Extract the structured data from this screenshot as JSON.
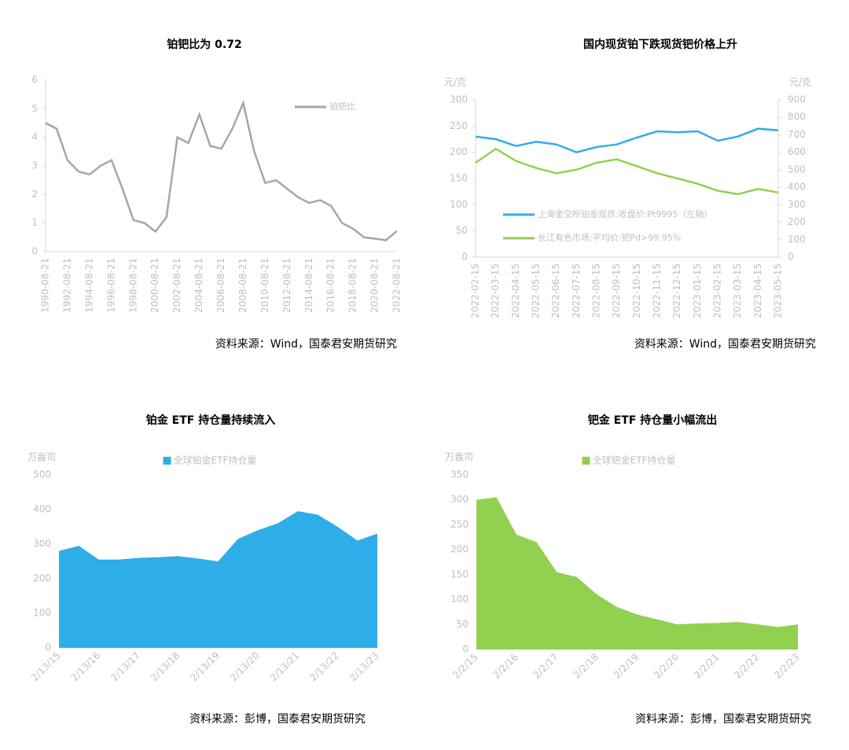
{
  "chart_data": [
    {
      "type": "line",
      "title": "铂钯比为 0.72",
      "source": "资料来源：Wind，国泰君安期货研究",
      "categories": [
        "1990-08-21",
        null,
        "1992-08-21",
        null,
        "1994-08-21",
        null,
        "1996-08-21",
        null,
        "1998-08-21",
        null,
        "2000-08-21",
        null,
        "2002-08-21",
        null,
        "2004-08-21",
        null,
        "2006-08-21",
        null,
        "2008-08-21",
        null,
        "2010-08-21",
        null,
        "2012-08-21",
        null,
        "2014-08-21",
        null,
        "2016-08-21",
        null,
        "2018-08-21",
        null,
        "2020-08-21",
        null,
        "2022-08-21"
      ],
      "series": [
        {
          "name": "铂钯比",
          "color": "#a6a6a6",
          "values": [
            4.5,
            4.3,
            3.2,
            2.8,
            2.7,
            3.0,
            3.2,
            2.2,
            1.1,
            1.0,
            0.7,
            1.2,
            4.0,
            3.8,
            4.8,
            3.7,
            3.6,
            4.3,
            5.2,
            3.5,
            2.4,
            2.5,
            2.2,
            1.9,
            1.7,
            1.8,
            1.6,
            1.0,
            0.8,
            0.5,
            0.45,
            0.4,
            0.72
          ]
        }
      ],
      "ylim": [
        0,
        6
      ],
      "yticks": [
        0,
        1,
        2,
        3,
        4,
        5,
        6
      ],
      "legend": "upper right"
    },
    {
      "type": "line",
      "title": "国内现货铂下跌现货钯价格上升",
      "source": "资料来源：Wind，国泰君安期货研究",
      "ylabel": "元/克",
      "y2label": "元/克",
      "categories": [
        "2022-02-15",
        "2022-03-15",
        "2022-04-15",
        "2022-05-15",
        "2022-06-15",
        "2022-07-15",
        "2022-08-15",
        "2022-09-15",
        "2022-10-15",
        "2022-11-15",
        "2022-12-15",
        "2023-01-15",
        "2023-02-15",
        "2023-03-15",
        "2023-04-15",
        "2023-05-15"
      ],
      "series": [
        {
          "name": "上海金交所铂金现货:收盘价:Pt9995（左轴）",
          "color": "#2eaee8",
          "values": [
            230,
            225,
            212,
            220,
            215,
            200,
            210,
            215,
            228,
            240,
            238,
            240,
            222,
            230,
            245,
            242
          ]
        },
        {
          "name": "长江有色市场:平均价:钯Pd>99.95%",
          "color": "#92d050",
          "axis": "y2",
          "values": [
            540,
            620,
            550,
            510,
            480,
            500,
            540,
            560,
            520,
            480,
            450,
            420,
            380,
            360,
            390,
            370
          ]
        }
      ],
      "ylim": [
        0,
        300
      ],
      "yticks": [
        0,
        50,
        100,
        150,
        200,
        250,
        300
      ],
      "y2lim": [
        0,
        900
      ],
      "y2ticks": [
        0,
        100,
        200,
        300,
        400,
        500,
        600,
        700,
        800,
        900
      ],
      "legend": "center left"
    },
    {
      "type": "area",
      "title": "铂金 ETF 持仓量持续流入",
      "source": "资料来源：彭博，国泰君安期货研究",
      "ylabel": "万盎司",
      "categories": [
        "2/13/15",
        null,
        "2/13/16",
        null,
        "2/13/17",
        null,
        "2/13/18",
        null,
        "2/13/19",
        null,
        "2/13/20",
        null,
        "2/13/21",
        null,
        "2/13/22",
        null,
        "2/13/23"
      ],
      "series": [
        {
          "name": "全球铂金ETF持仓量",
          "color": "#2eaee8",
          "values": [
            280,
            295,
            255,
            255,
            260,
            262,
            265,
            258,
            250,
            315,
            340,
            360,
            395,
            385,
            350,
            310,
            330
          ]
        }
      ],
      "ylim": [
        0,
        500
      ],
      "yticks": [
        0,
        100,
        200,
        300,
        400,
        500
      ],
      "legend": "upper center"
    },
    {
      "type": "area",
      "title": "钯金 ETF 持仓量小幅流出",
      "source": "资料来源：彭博，国泰君安期货研究",
      "ylabel": "万盎司",
      "categories": [
        "2/2/15",
        null,
        "2/2/16",
        null,
        "2/2/17",
        null,
        "2/2/18",
        null,
        "2/2/19",
        null,
        "2/2/20",
        null,
        "2/2/21",
        null,
        "2/2/22",
        null,
        "2/2/23"
      ],
      "series": [
        {
          "name": "全球钯金ETF持仓量",
          "color": "#92d050",
          "values": [
            300,
            305,
            230,
            215,
            155,
            145,
            110,
            85,
            70,
            60,
            50,
            52,
            53,
            55,
            50,
            45,
            50
          ]
        }
      ],
      "ylim": [
        0,
        350
      ],
      "yticks": [
        0,
        50,
        100,
        150,
        200,
        250,
        300,
        350
      ],
      "legend": "upper center"
    }
  ]
}
